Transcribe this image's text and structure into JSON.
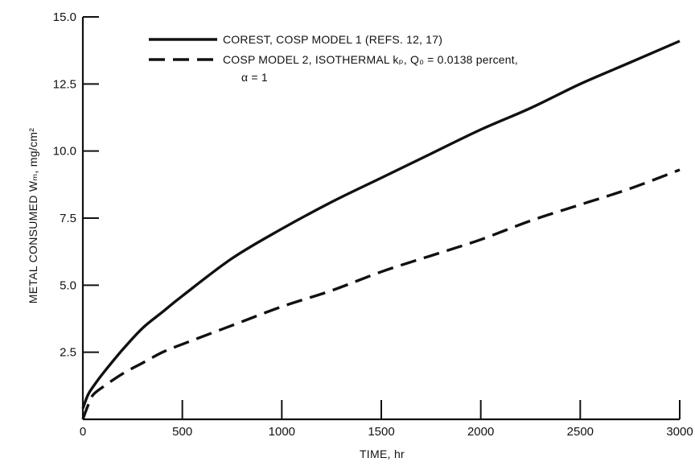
{
  "chart_data": {
    "type": "line",
    "title": "",
    "xlabel": "TIME, hr",
    "ylabel": "METAL CONSUMED Wₘ, mg/cm²",
    "xlim": [
      0,
      3000
    ],
    "ylim": [
      0,
      15.0
    ],
    "x_ticks": [
      0,
      500,
      1000,
      1500,
      2000,
      2500,
      3000
    ],
    "x_tick_labels": [
      "0",
      "500",
      "1000",
      "1500",
      "2000",
      "2500",
      "3000"
    ],
    "y_ticks": [
      2.5,
      5.0,
      7.5,
      10.0,
      12.5,
      15.0
    ],
    "y_tick_labels": [
      "2.5",
      "5.0",
      "7.5",
      "10.0",
      "12.5",
      "15.0"
    ],
    "grid": false,
    "legend_position": "top-left",
    "series": [
      {
        "name": "COREST, COSP MODEL 1 (REFS. 12, 17)",
        "style": "solid",
        "x": [
          0,
          25,
          50,
          100,
          200,
          300,
          400,
          500,
          750,
          1000,
          1250,
          1500,
          1750,
          2000,
          2250,
          2500,
          2750,
          3000
        ],
        "y": [
          0.4,
          0.9,
          1.2,
          1.7,
          2.6,
          3.4,
          4.0,
          4.6,
          6.0,
          7.1,
          8.1,
          9.0,
          9.9,
          10.8,
          11.6,
          12.5,
          13.3,
          14.1
        ]
      },
      {
        "name": "COSP MODEL 2, ISOTHERMAL kₚ, Q₀ = 0.0138 percent, α = 1",
        "legend_lines": [
          "COSP MODEL 2, ISOTHERMAL kₚ, Q₀ = 0.0138 percent,",
          "α = 1"
        ],
        "style": "dashed",
        "x": [
          0,
          25,
          50,
          100,
          200,
          300,
          400,
          500,
          750,
          1000,
          1250,
          1500,
          1750,
          2000,
          2250,
          2500,
          2750,
          3000
        ],
        "y": [
          0.0,
          0.5,
          0.9,
          1.2,
          1.7,
          2.1,
          2.5,
          2.8,
          3.5,
          4.2,
          4.8,
          5.5,
          6.1,
          6.7,
          7.4,
          8.0,
          8.6,
          9.3
        ]
      }
    ],
    "colors": {
      "line": "#111111",
      "axis": "#111111",
      "background": "#ffffff"
    }
  }
}
